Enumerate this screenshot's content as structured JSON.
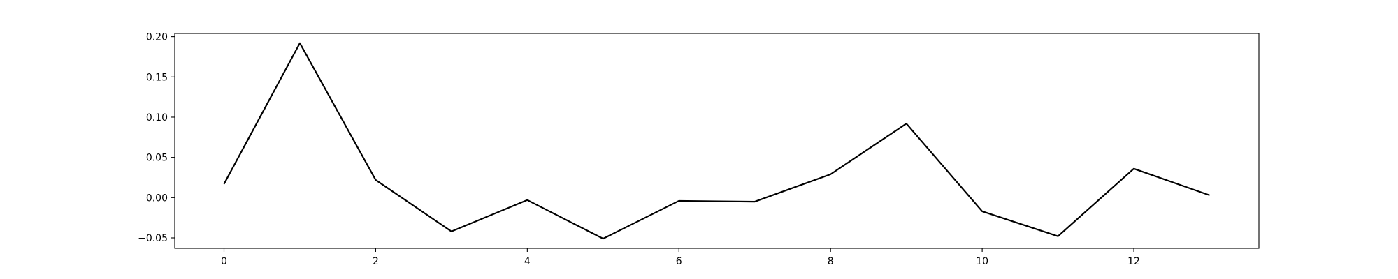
{
  "chart_data": {
    "type": "line",
    "title": "",
    "xlabel": "",
    "ylabel": "",
    "xlim": [
      -0.65,
      13.65
    ],
    "ylim": [
      -0.063,
      0.204
    ],
    "xticks": [
      0,
      2,
      4,
      6,
      8,
      10,
      12
    ],
    "xtick_labels": [
      "0",
      "2",
      "4",
      "6",
      "8",
      "10",
      "12"
    ],
    "yticks": [
      -0.05,
      0.0,
      0.05,
      0.1,
      0.15,
      0.2
    ],
    "ytick_labels": [
      "−0.05",
      "0.00",
      "0.05",
      "0.10",
      "0.15",
      "0.20"
    ],
    "grid": false,
    "legend": "none",
    "line_color": "#000000",
    "series": [
      {
        "x": [
          0,
          1,
          2,
          3,
          4,
          5,
          6,
          7,
          8,
          9,
          10,
          11,
          12,
          13
        ],
        "values": [
          0.017,
          0.192,
          0.022,
          -0.042,
          -0.003,
          -0.051,
          -0.004,
          -0.005,
          0.029,
          0.092,
          -0.017,
          -0.048,
          0.036,
          0.003
        ]
      }
    ]
  }
}
